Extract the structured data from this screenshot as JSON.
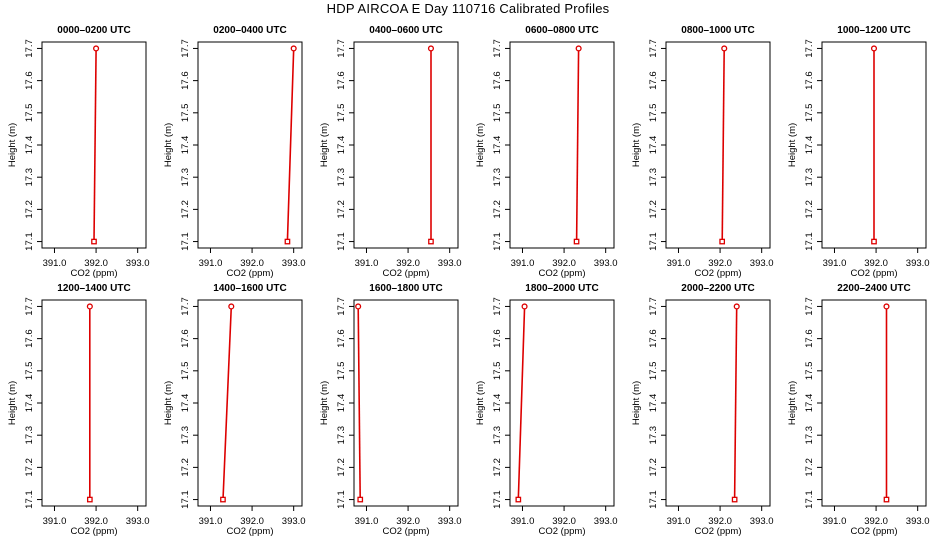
{
  "figure": {
    "title": "HDP AIRCOA E  Day 110716  Calibrated Profiles"
  },
  "axes": {
    "xlabel": "CO2 (ppm)",
    "ylabel": "Height (m)",
    "xticks": [
      391.0,
      392.0,
      393.0
    ],
    "xtick_labels": [
      "391.0",
      "392.0",
      "393.0"
    ],
    "yticks": [
      17.1,
      17.2,
      17.3,
      17.4,
      17.5,
      17.6,
      17.7
    ],
    "ytick_labels": [
      "17.1",
      "17.2",
      "17.3",
      "17.4",
      "17.5",
      "17.6",
      "17.7"
    ],
    "xlim": [
      390.7,
      393.2
    ],
    "ylim": [
      17.08,
      17.72
    ]
  },
  "colors": {
    "series": "#dd0000",
    "axes": "#000000"
  },
  "chart_data": [
    {
      "type": "line",
      "title": "0000–0200 UTC",
      "x": [
        391.95,
        392.0
      ],
      "y": [
        17.1,
        17.7
      ],
      "xlabel": "CO2 (ppm)",
      "ylabel": "Height (m)"
    },
    {
      "type": "line",
      "title": "0200–0400 UTC",
      "x": [
        392.85,
        393.0
      ],
      "y": [
        17.1,
        17.7
      ],
      "xlabel": "CO2 (ppm)",
      "ylabel": "Height (m)"
    },
    {
      "type": "line",
      "title": "0400–0600 UTC",
      "x": [
        392.55,
        392.55
      ],
      "y": [
        17.1,
        17.7
      ],
      "xlabel": "CO2 (ppm)",
      "ylabel": "Height (m)"
    },
    {
      "type": "line",
      "title": "0600–0800 UTC",
      "x": [
        392.3,
        392.35
      ],
      "y": [
        17.1,
        17.7
      ],
      "xlabel": "CO2 (ppm)",
      "ylabel": "Height (m)"
    },
    {
      "type": "line",
      "title": "0800–1000 UTC",
      "x": [
        392.05,
        392.1
      ],
      "y": [
        17.1,
        17.7
      ],
      "xlabel": "CO2 (ppm)",
      "ylabel": "Height (m)"
    },
    {
      "type": "line",
      "title": "1000–1200 UTC",
      "x": [
        391.95,
        391.95
      ],
      "y": [
        17.1,
        17.7
      ],
      "xlabel": "CO2 (ppm)",
      "ylabel": "Height (m)"
    },
    {
      "type": "line",
      "title": "1200–1400 UTC",
      "x": [
        391.85,
        391.85
      ],
      "y": [
        17.1,
        17.7
      ],
      "xlabel": "CO2 (ppm)",
      "ylabel": "Height (m)"
    },
    {
      "type": "line",
      "title": "1400–1600 UTC",
      "x": [
        391.3,
        391.5
      ],
      "y": [
        17.1,
        17.7
      ],
      "xlabel": "CO2 (ppm)",
      "ylabel": "Height (m)"
    },
    {
      "type": "line",
      "title": "1600–1800 UTC",
      "x": [
        390.85,
        390.8
      ],
      "y": [
        17.1,
        17.7
      ],
      "xlabel": "CO2 (ppm)",
      "ylabel": "Height (m)"
    },
    {
      "type": "line",
      "title": "1800–2000 UTC",
      "x": [
        390.9,
        391.05
      ],
      "y": [
        17.1,
        17.7
      ],
      "xlabel": "CO2 (ppm)",
      "ylabel": "Height (m)"
    },
    {
      "type": "line",
      "title": "2000–2200 UTC",
      "x": [
        392.35,
        392.4
      ],
      "y": [
        17.1,
        17.7
      ],
      "xlabel": "CO2 (ppm)",
      "ylabel": "Height (m)"
    },
    {
      "type": "line",
      "title": "2200–2400 UTC",
      "x": [
        392.25,
        392.25
      ],
      "y": [
        17.1,
        17.7
      ],
      "xlabel": "CO2 (ppm)",
      "ylabel": "Height (m)"
    }
  ]
}
